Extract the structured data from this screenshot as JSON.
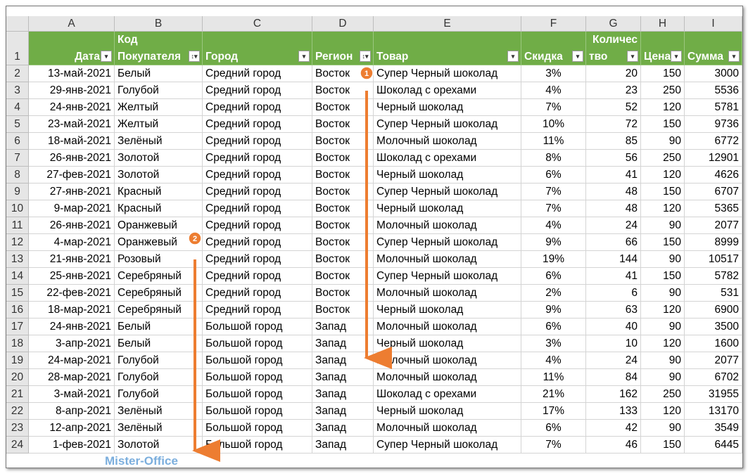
{
  "sheet": {
    "columns": [
      "A",
      "B",
      "C",
      "D",
      "E",
      "F",
      "G",
      "H",
      "I"
    ],
    "row_numbers": [
      1,
      2,
      3,
      4,
      5,
      6,
      7,
      8,
      9,
      10,
      11,
      12,
      13,
      14,
      15,
      16,
      17,
      18,
      19,
      20,
      21,
      22,
      23,
      24
    ],
    "header": [
      [
        "Дата"
      ],
      [
        "Код",
        "Покупателя"
      ],
      [
        "Город"
      ],
      [
        "Регион"
      ],
      [
        "Товар"
      ],
      [
        "Скидка"
      ],
      [
        "Количес",
        "тво"
      ],
      [
        "Цена"
      ],
      [
        "Сумма"
      ]
    ],
    "rows": [
      [
        "13-май-2021",
        "Белый",
        "Средний город",
        "Восток",
        "Супер Черный шоколад",
        "3%",
        20,
        150,
        3000
      ],
      [
        "29-янв-2021",
        "Голубой",
        "Средний город",
        "Восток",
        "Шоколад с орехами",
        "4%",
        23,
        250,
        5536
      ],
      [
        "24-янв-2021",
        "Желтый",
        "Средний город",
        "Восток",
        "Черный шоколад",
        "7%",
        52,
        120,
        5781
      ],
      [
        "23-май-2021",
        "Желтый",
        "Средний город",
        "Восток",
        "Супер Черный шоколад",
        "10%",
        72,
        150,
        9736
      ],
      [
        "18-май-2021",
        "Зелёный",
        "Средний город",
        "Восток",
        "Молочный шоколад",
        "11%",
        85,
        90,
        6772
      ],
      [
        "26-янв-2021",
        "Золотой",
        "Средний город",
        "Восток",
        "Шоколад с орехами",
        "8%",
        56,
        250,
        12901
      ],
      [
        "27-фев-2021",
        "Золотой",
        "Средний город",
        "Восток",
        "Черный шоколад",
        "6%",
        41,
        120,
        4626
      ],
      [
        "27-янв-2021",
        "Красный",
        "Средний город",
        "Восток",
        "Супер Черный шоколад",
        "7%",
        48,
        150,
        6707
      ],
      [
        "9-мар-2021",
        "Красный",
        "Средний город",
        "Восток",
        "Черный шоколад",
        "7%",
        48,
        120,
        5365
      ],
      [
        "26-янв-2021",
        "Оранжевый",
        "Средний город",
        "Восток",
        "Молочный шоколад",
        "4%",
        24,
        90,
        2077
      ],
      [
        "4-мар-2021",
        "Оранжевый",
        "Средний город",
        "Восток",
        "Супер Черный шоколад",
        "9%",
        66,
        150,
        8999
      ],
      [
        "21-янв-2021",
        "Розовый",
        "Средний город",
        "Восток",
        "Молочный шоколад",
        "19%",
        144,
        90,
        10517
      ],
      [
        "25-янв-2021",
        "Серебряный",
        "Средний город",
        "Восток",
        "Супер Черный шоколад",
        "6%",
        41,
        150,
        5782
      ],
      [
        "22-фев-2021",
        "Серебряный",
        "Средний город",
        "Восток",
        "Молочный шоколад",
        "2%",
        6,
        90,
        531
      ],
      [
        "18-мар-2021",
        "Серебряный",
        "Средний город",
        "Восток",
        "Черный шоколад",
        "9%",
        63,
        120,
        6900
      ],
      [
        "24-янв-2021",
        "Белый",
        "Большой город",
        "Запад",
        "Молочный шоколад",
        "6%",
        40,
        90,
        3500
      ],
      [
        "3-апр-2021",
        "Белый",
        "Большой город",
        "Запад",
        "Черный шоколад",
        "3%",
        10,
        120,
        1600
      ],
      [
        "24-мар-2021",
        "Голубой",
        "Большой город",
        "Запад",
        "Молочный шоколад",
        "4%",
        24,
        90,
        2077
      ],
      [
        "28-мар-2021",
        "Голубой",
        "Большой город",
        "Запад",
        "Молочный шоколад",
        "11%",
        84,
        90,
        6702
      ],
      [
        "3-май-2021",
        "Голубой",
        "Большой город",
        "Запад",
        "Шоколад с орехами",
        "21%",
        162,
        250,
        31955
      ],
      [
        "8-апр-2021",
        "Зелёный",
        "Большой город",
        "Запад",
        "Черный шоколад",
        "17%",
        133,
        120,
        13170
      ],
      [
        "12-апр-2021",
        "Зелёный",
        "Большой город",
        "Запад",
        "Молочный шоколад",
        "6%",
        42,
        90,
        3549
      ],
      [
        "1-фев-2021",
        "Золотой",
        "Большой город",
        "Запад",
        "Супер Черный шоколад",
        "7%",
        46,
        150,
        6445
      ]
    ]
  },
  "annotations": [
    "1",
    "2"
  ],
  "watermark": "Mister-Office"
}
